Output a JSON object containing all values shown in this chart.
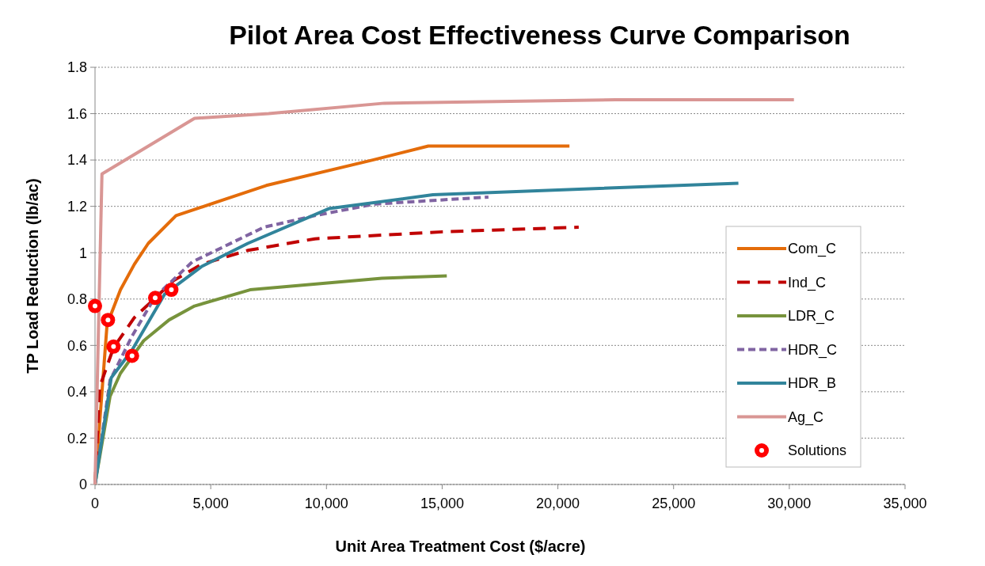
{
  "chart_data": {
    "type": "line",
    "title": "Pilot Area Cost Effectiveness Curve Comparison",
    "xlabel": "Unit Area Treatment Cost ($/acre)",
    "ylabel": "TP Load Reduction (lb/ac)",
    "xlim": [
      0,
      35000
    ],
    "ylim": [
      0,
      1.8
    ],
    "xticks": [
      {
        "value": 0,
        "label": "0"
      },
      {
        "value": 5000,
        "label": "5,000"
      },
      {
        "value": 10000,
        "label": "10,000"
      },
      {
        "value": 15000,
        "label": "15,000"
      },
      {
        "value": 20000,
        "label": "20,000"
      },
      {
        "value": 25000,
        "label": "25,000"
      },
      {
        "value": 30000,
        "label": "30,000"
      },
      {
        "value": 35000,
        "label": "35,000"
      }
    ],
    "yticks": [
      0,
      0.2,
      0.4,
      0.6,
      0.8,
      1,
      1.2,
      1.4,
      1.6,
      1.8
    ],
    "grid": "y",
    "legend": "right",
    "series": [
      {
        "name": "Com_C",
        "color": "#e46c0a",
        "line_style": "solid",
        "x": [
          0,
          520,
          1100,
          1700,
          2300,
          3500,
          7400,
          12000,
          14400,
          20500
        ],
        "values": [
          0,
          0.69,
          0.84,
          0.95,
          1.04,
          1.16,
          1.29,
          1.4,
          1.46,
          1.46
        ]
      },
      {
        "name": "Ind_C",
        "color": "#c00000",
        "line_style": "dashed",
        "x": [
          0,
          200,
          800,
          1700,
          3400,
          4600,
          6600,
          9500,
          15000,
          20900
        ],
        "values": [
          0,
          0.42,
          0.59,
          0.72,
          0.88,
          0.95,
          1.01,
          1.06,
          1.09,
          1.11
        ]
      },
      {
        "name": "LDR_C",
        "color": "#77933c",
        "line_style": "solid",
        "x": [
          0,
          650,
          1100,
          2100,
          3200,
          4300,
          6700,
          12400,
          15200
        ],
        "values": [
          0,
          0.38,
          0.48,
          0.62,
          0.71,
          0.77,
          0.84,
          0.89,
          0.9
        ]
      },
      {
        "name": "HDR_C",
        "color": "#8064a2",
        "line_style": "dotted",
        "x": [
          0,
          650,
          1600,
          2600,
          4200,
          7300,
          9500,
          12100,
          17000
        ],
        "values": [
          0,
          0.45,
          0.64,
          0.81,
          0.96,
          1.11,
          1.16,
          1.21,
          1.24
        ]
      },
      {
        "name": "HDR_B",
        "color": "#31849b",
        "line_style": "solid",
        "x": [
          0,
          700,
          1600,
          3000,
          4600,
          6600,
          10100,
          14600,
          27800
        ],
        "values": [
          0,
          0.46,
          0.58,
          0.82,
          0.94,
          1.04,
          1.19,
          1.25,
          1.3
        ]
      },
      {
        "name": "Ag_C",
        "color": "#d99694",
        "line_style": "solid",
        "x": [
          0,
          300,
          4300,
          7500,
          12500,
          22500,
          30200
        ],
        "values": [
          0,
          1.34,
          1.58,
          1.6,
          1.645,
          1.66,
          1.66
        ]
      },
      {
        "name": "Solutions",
        "type": "scatter",
        "marker": "circle",
        "color": "#ff0000",
        "x": [
          0,
          560,
          800,
          1600,
          2600,
          3300
        ],
        "values": [
          0.77,
          0.71,
          0.595,
          0.555,
          0.805,
          0.84
        ]
      }
    ]
  }
}
